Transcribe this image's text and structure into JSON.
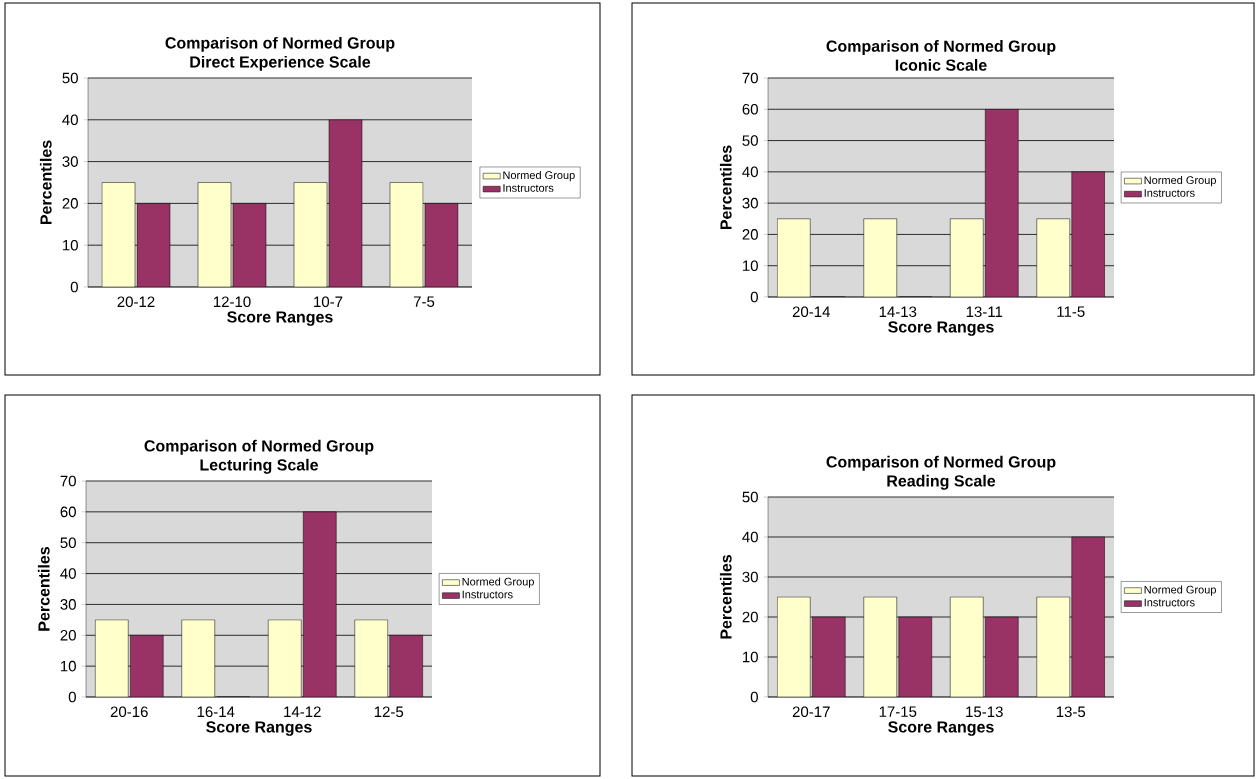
{
  "chart_data": [
    {
      "type": "bar",
      "title": "Comparison of Normed Group",
      "subtitle": "Direct Experience Scale",
      "xlabel": "Score Ranges",
      "ylabel": "Percentiles",
      "categories": [
        "20-12",
        "12-10",
        "10-7",
        "7-5"
      ],
      "series": [
        {
          "name": "Normed Group",
          "color": "#ffffcc",
          "values": [
            25,
            25,
            25,
            25
          ]
        },
        {
          "name": "Instructors",
          "color": "#993366",
          "values": [
            20,
            20,
            40,
            20
          ]
        }
      ],
      "ylim": [
        0,
        50
      ],
      "yticks": [
        0,
        10,
        20,
        30,
        40,
        50
      ],
      "grid": "y",
      "legend": "right"
    },
    {
      "type": "bar",
      "title": "Comparison of Normed Group",
      "subtitle": "Iconic Scale",
      "xlabel": "Score Ranges",
      "ylabel": "Percentiles",
      "categories": [
        "20-14",
        "14-13",
        "13-11",
        "11-5"
      ],
      "series": [
        {
          "name": "Normed Group",
          "color": "#ffffcc",
          "values": [
            25,
            25,
            25,
            25
          ]
        },
        {
          "name": "Instructors",
          "color": "#993366",
          "values": [
            0,
            0,
            60,
            40
          ]
        }
      ],
      "ylim": [
        0,
        70
      ],
      "yticks": [
        0,
        10,
        20,
        30,
        40,
        50,
        60,
        70
      ],
      "grid": "y",
      "legend": "right"
    },
    {
      "type": "bar",
      "title": "Comparison of Normed Group",
      "subtitle": "Lecturing Scale",
      "xlabel": "Score Ranges",
      "ylabel": "Percentiles",
      "categories": [
        "20-16",
        "16-14",
        "14-12",
        "12-5"
      ],
      "series": [
        {
          "name": "Normed Group",
          "color": "#ffffcc",
          "values": [
            25,
            25,
            25,
            25
          ]
        },
        {
          "name": "Instructors",
          "color": "#993366",
          "values": [
            20,
            0,
            60,
            20
          ]
        }
      ],
      "ylim": [
        0,
        70
      ],
      "yticks": [
        0,
        10,
        20,
        30,
        40,
        50,
        60,
        70
      ],
      "grid": "y",
      "legend": "right"
    },
    {
      "type": "bar",
      "title": "Comparison of Normed Group",
      "subtitle": "Reading Scale",
      "xlabel": "Score Ranges",
      "ylabel": "Percentiles",
      "categories": [
        "20-17",
        "17-15",
        "15-13",
        "13-5"
      ],
      "series": [
        {
          "name": "Normed Group",
          "color": "#ffffcc",
          "values": [
            25,
            25,
            25,
            25
          ]
        },
        {
          "name": "Instructors",
          "color": "#993366",
          "values": [
            20,
            20,
            20,
            40
          ]
        }
      ],
      "ylim": [
        0,
        50
      ],
      "yticks": [
        0,
        10,
        20,
        30,
        40,
        50
      ],
      "grid": "y",
      "legend": "right"
    }
  ]
}
